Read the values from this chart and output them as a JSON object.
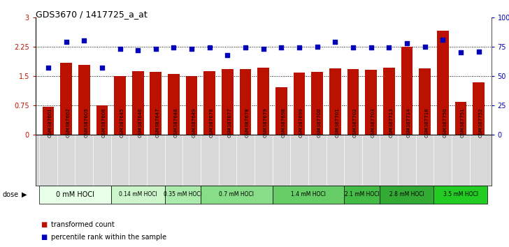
{
  "title": "GDS3670 / 1417725_a_at",
  "samples": [
    "GSM387601",
    "GSM387602",
    "GSM387605",
    "GSM387606",
    "GSM387645",
    "GSM387646",
    "GSM387647",
    "GSM387648",
    "GSM387649",
    "GSM387676",
    "GSM387677",
    "GSM387678",
    "GSM387679",
    "GSM387698",
    "GSM387699",
    "GSM387700",
    "GSM387701",
    "GSM387702",
    "GSM387703",
    "GSM387713",
    "GSM387714",
    "GSM387716",
    "GSM387750",
    "GSM387751",
    "GSM387752"
  ],
  "bar_values": [
    0.72,
    1.84,
    1.78,
    0.75,
    1.5,
    1.62,
    1.6,
    1.55,
    1.5,
    1.62,
    1.68,
    1.68,
    1.72,
    1.22,
    1.58,
    1.6,
    1.7,
    1.68,
    1.65,
    1.72,
    2.25,
    1.7,
    2.65,
    0.83,
    1.33
  ],
  "percentile_values": [
    57,
    79,
    80,
    57,
    73,
    72,
    73,
    74,
    73,
    74,
    68,
    74,
    73,
    74,
    74,
    75,
    79,
    74,
    74,
    74,
    78,
    75,
    81,
    70,
    71
  ],
  "dose_groups": [
    {
      "label": "0 mM HOCl",
      "start": 0,
      "end": 4,
      "color": "#e8ffe8"
    },
    {
      "label": "0.14 mM HOCl",
      "start": 4,
      "end": 7,
      "color": "#ccf5cc"
    },
    {
      "label": "0.35 mM HOCl",
      "start": 7,
      "end": 9,
      "color": "#aaeaaa"
    },
    {
      "label": "0.7 mM HOCl",
      "start": 9,
      "end": 13,
      "color": "#88dd88"
    },
    {
      "label": "1.4 mM HOCl",
      "start": 13,
      "end": 17,
      "color": "#66cc66"
    },
    {
      "label": "2.1 mM HOCl",
      "start": 17,
      "end": 19,
      "color": "#44bb44"
    },
    {
      "label": "2.8 mM HOCl",
      "start": 19,
      "end": 22,
      "color": "#33aa33"
    },
    {
      "label": "3.5 mM HOCl",
      "start": 22,
      "end": 25,
      "color": "#22cc22"
    }
  ],
  "bar_color": "#bb1100",
  "dot_color": "#0000bb",
  "ylim_left": [
    0,
    3
  ],
  "ylim_right": [
    0,
    100
  ],
  "yticks_left": [
    0,
    0.75,
    1.5,
    2.25,
    3
  ],
  "ytick_labels_left": [
    "0",
    "0.75",
    "1.5",
    "2.25",
    "3"
  ],
  "yticks_right": [
    0,
    25,
    50,
    75,
    100
  ],
  "ytick_labels_right": [
    "0",
    "25",
    "50",
    "75",
    "100%"
  ],
  "hlines": [
    0.75,
    1.5,
    2.25
  ],
  "xtick_bg": "#d8d8d8",
  "dose_label_fontsize_large": 7,
  "dose_label_fontsize_small": 5.5
}
